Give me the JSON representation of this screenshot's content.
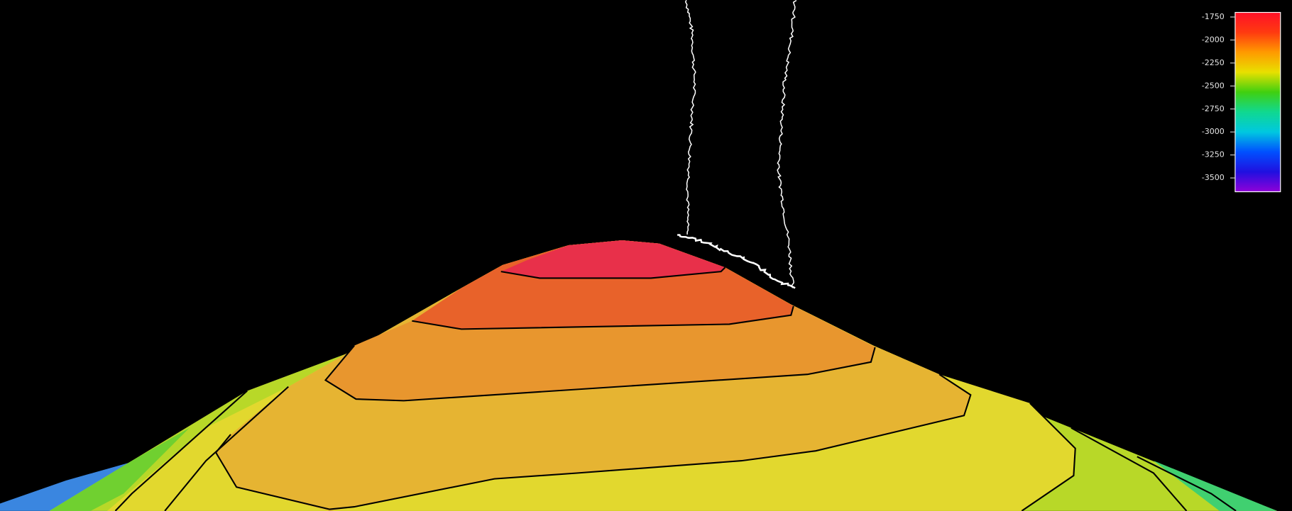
{
  "colorbar": {
    "limits": [
      -1700,
      -3650
    ],
    "ticks": [
      -1750,
      -2000,
      -2250,
      -2500,
      -2750,
      -3000,
      -3250,
      -3500
    ],
    "colors": [
      "#ff1028",
      "#ff3a10",
      "#ff9a00",
      "#e8e000",
      "#40d010",
      "#10d890",
      "#00c8e0",
      "#0050ff",
      "#2010e0",
      "#9000d8"
    ]
  }
}
